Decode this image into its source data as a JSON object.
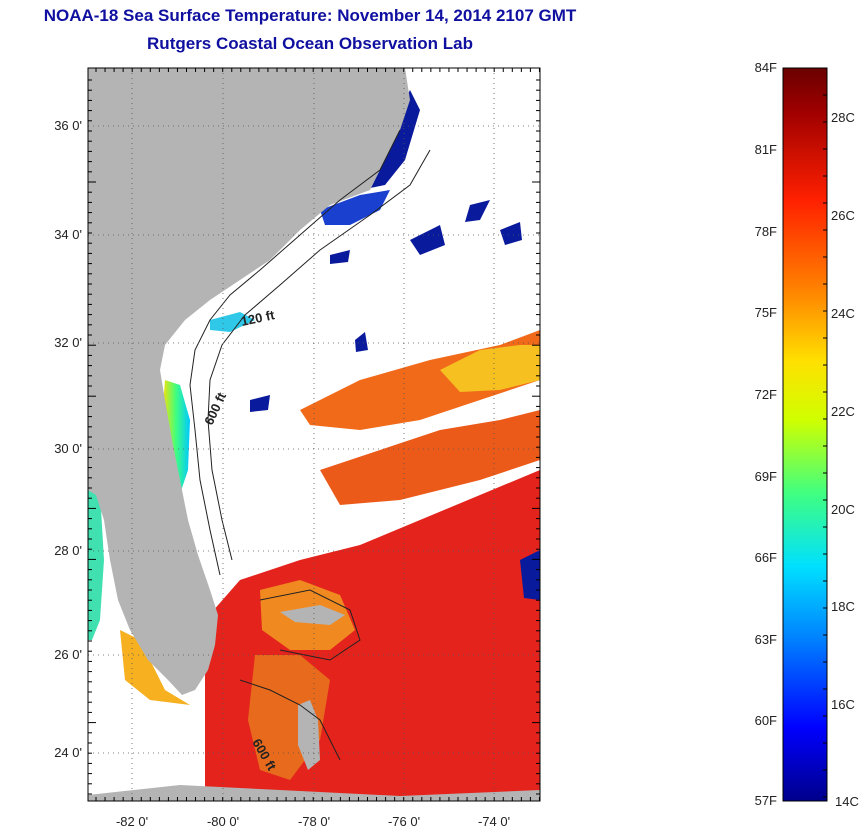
{
  "header": {
    "title": "NOAA-18 Sea Surface Temperature:  November 14, 2014 2107 GMT",
    "subtitle": "Rutgers Coastal Ocean Observation Lab"
  },
  "map": {
    "lat_labels": [
      "36 0'",
      "34 0'",
      "32 0'",
      "30 0'",
      "28 0'",
      "26 0'",
      "24 0'"
    ],
    "lon_labels": [
      "-82 0'",
      "-80 0'",
      "-78 0'",
      "-76 0'",
      "-74 0'"
    ],
    "contour_labels": [
      "120 ft",
      "600 ft",
      "600 ft"
    ],
    "colors": {
      "land": "#b4b4b4",
      "cloud": "#ffffff",
      "cold": "#0a1a9c",
      "warm": "#e8221a",
      "orange": "#f06a1a"
    }
  },
  "colorbar": {
    "f_labels": [
      "84F",
      "81F",
      "78F",
      "75F",
      "72F",
      "69F",
      "66F",
      "63F",
      "60F",
      "57F"
    ],
    "c_labels": [
      "28C",
      "26C",
      "24C",
      "22C",
      "20C",
      "18C",
      "16C",
      "14C"
    ],
    "stops": [
      "#00008a",
      "#0000ff",
      "#0080ff",
      "#00e0ff",
      "#40ff80",
      "#d0ff00",
      "#ffe000",
      "#ff8000",
      "#ff2000",
      "#a00000",
      "#6a0000"
    ]
  }
}
